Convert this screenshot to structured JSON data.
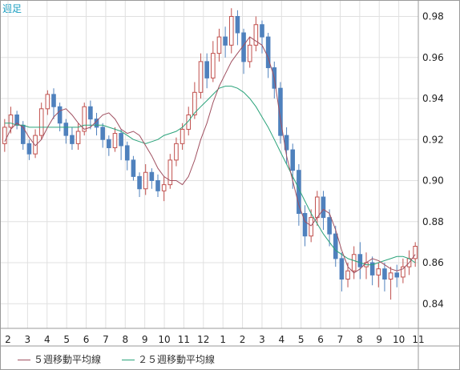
{
  "period_label": "週足",
  "colors": {
    "up": "#c0504d",
    "down": "#4f81bd",
    "ma5": "#a05060",
    "ma25": "#2aa37a",
    "grid": "#e0e0e0",
    "frame": "#9a9a9a"
  },
  "chart_data": {
    "type": "candlestick",
    "ylim": [
      0.828,
      0.988
    ],
    "y_ticks": [
      "0.98",
      "0.96",
      "0.94",
      "0.92",
      "0.90",
      "0.88",
      "0.86",
      "0.84"
    ],
    "x_tick_labels": [
      "2",
      "3",
      "4",
      "5",
      "6",
      "7",
      "8",
      "9",
      "10",
      "11",
      "12",
      "1",
      "2",
      "3",
      "4",
      "5",
      "6",
      "7",
      "8",
      "9",
      "10",
      "11"
    ],
    "series": [
      {
        "name": "５週移動平均線",
        "values": [
          0.919,
          0.925,
          0.928,
          0.926,
          0.921,
          0.917,
          0.92,
          0.926,
          0.931,
          0.934,
          0.935,
          0.932,
          0.928,
          0.925,
          0.926,
          0.929,
          0.932,
          0.933,
          0.93,
          0.925,
          0.923,
          0.924,
          0.922,
          0.917,
          0.912,
          0.906,
          0.902,
          0.9,
          0.9,
          0.898,
          0.902,
          0.91,
          0.92,
          0.928,
          0.938,
          0.946,
          0.952,
          0.958,
          0.962,
          0.966,
          0.97,
          0.968,
          0.966,
          0.96,
          0.95,
          0.93,
          0.912,
          0.9,
          0.888,
          0.88,
          0.878,
          0.882,
          0.886,
          0.884,
          0.876,
          0.866,
          0.858,
          0.855,
          0.857,
          0.86,
          0.862,
          0.861,
          0.859,
          0.857,
          0.856,
          0.857,
          0.86,
          0.864
        ]
      },
      {
        "name": "２５週移動平均線",
        "values": [
          0.928,
          0.928,
          0.927,
          0.927,
          0.926,
          0.926,
          0.926,
          0.926,
          0.926,
          0.926,
          0.926,
          0.926,
          0.926,
          0.927,
          0.927,
          0.927,
          0.927,
          0.926,
          0.925,
          0.924,
          0.922,
          0.92,
          0.919,
          0.918,
          0.919,
          0.92,
          0.922,
          0.923,
          0.924,
          0.926,
          0.929,
          0.933,
          0.936,
          0.939,
          0.942,
          0.945,
          0.946,
          0.946,
          0.945,
          0.943,
          0.94,
          0.936,
          0.931,
          0.926,
          0.92,
          0.914,
          0.908,
          0.902,
          0.896,
          0.89,
          0.884,
          0.879,
          0.874,
          0.87,
          0.866,
          0.864,
          0.862,
          0.861,
          0.86,
          0.859,
          0.859,
          0.86,
          0.861,
          0.862,
          0.863,
          0.863,
          0.862,
          0.86
        ]
      }
    ],
    "candles": [
      [
        0.918,
        0.926,
        0.914,
        0.93
      ],
      [
        0.926,
        0.932,
        0.923,
        0.936
      ],
      [
        0.932,
        0.927,
        0.925,
        0.934
      ],
      [
        0.927,
        0.918,
        0.915,
        0.929
      ],
      [
        0.918,
        0.913,
        0.91,
        0.92
      ],
      [
        0.913,
        0.922,
        0.911,
        0.925
      ],
      [
        0.922,
        0.935,
        0.92,
        0.938
      ],
      [
        0.935,
        0.942,
        0.932,
        0.944
      ],
      [
        0.942,
        0.936,
        0.93,
        0.945
      ],
      [
        0.936,
        0.928,
        0.924,
        0.938
      ],
      [
        0.928,
        0.922,
        0.918,
        0.93
      ],
      [
        0.922,
        0.918,
        0.915,
        0.926
      ],
      [
        0.918,
        0.924,
        0.915,
        0.928
      ],
      [
        0.924,
        0.936,
        0.922,
        0.938
      ],
      [
        0.936,
        0.93,
        0.925,
        0.939
      ],
      [
        0.93,
        0.926,
        0.922,
        0.933
      ],
      [
        0.926,
        0.92,
        0.916,
        0.928
      ],
      [
        0.92,
        0.916,
        0.912,
        0.922
      ],
      [
        0.916,
        0.923,
        0.914,
        0.926
      ],
      [
        0.923,
        0.917,
        0.91,
        0.925
      ],
      [
        0.917,
        0.91,
        0.905,
        0.919
      ],
      [
        0.91,
        0.902,
        0.9,
        0.912
      ],
      [
        0.902,
        0.896,
        0.892,
        0.904
      ],
      [
        0.896,
        0.904,
        0.893,
        0.908
      ],
      [
        0.904,
        0.9,
        0.896,
        0.906
      ],
      [
        0.9,
        0.895,
        0.892,
        0.903
      ],
      [
        0.895,
        0.898,
        0.89,
        0.902
      ],
      [
        0.898,
        0.91,
        0.896,
        0.913
      ],
      [
        0.91,
        0.918,
        0.907,
        0.921
      ],
      [
        0.918,
        0.925,
        0.915,
        0.928
      ],
      [
        0.925,
        0.932,
        0.922,
        0.936
      ],
      [
        0.932,
        0.943,
        0.93,
        0.948
      ],
      [
        0.943,
        0.958,
        0.94,
        0.962
      ],
      [
        0.958,
        0.95,
        0.945,
        0.962
      ],
      [
        0.95,
        0.962,
        0.948,
        0.968
      ],
      [
        0.962,
        0.97,
        0.958,
        0.974
      ],
      [
        0.97,
        0.966,
        0.96,
        0.975
      ],
      [
        0.966,
        0.98,
        0.962,
        0.984
      ],
      [
        0.98,
        0.972,
        0.966,
        0.983
      ],
      [
        0.972,
        0.958,
        0.952,
        0.974
      ],
      [
        0.958,
        0.966,
        0.955,
        0.97
      ],
      [
        0.966,
        0.976,
        0.963,
        0.98
      ],
      [
        0.976,
        0.97,
        0.962,
        0.978
      ],
      [
        0.97,
        0.955,
        0.95,
        0.972
      ],
      [
        0.955,
        0.945,
        0.94,
        0.958
      ],
      [
        0.945,
        0.922,
        0.918,
        0.948
      ],
      [
        0.922,
        0.915,
        0.908,
        0.926
      ],
      [
        0.915,
        0.905,
        0.896,
        0.918
      ],
      [
        0.905,
        0.884,
        0.878,
        0.908
      ],
      [
        0.884,
        0.873,
        0.868,
        0.888
      ],
      [
        0.873,
        0.882,
        0.87,
        0.886
      ],
      [
        0.882,
        0.892,
        0.878,
        0.895
      ],
      [
        0.892,
        0.882,
        0.876,
        0.895
      ],
      [
        0.882,
        0.874,
        0.868,
        0.886
      ],
      [
        0.874,
        0.862,
        0.858,
        0.878
      ],
      [
        0.862,
        0.852,
        0.846,
        0.865
      ],
      [
        0.852,
        0.856,
        0.848,
        0.86
      ],
      [
        0.856,
        0.864,
        0.852,
        0.868
      ],
      [
        0.864,
        0.858,
        0.852,
        0.87
      ],
      [
        0.858,
        0.86,
        0.852,
        0.865
      ],
      [
        0.86,
        0.854,
        0.849,
        0.863
      ],
      [
        0.854,
        0.857,
        0.848,
        0.86
      ],
      [
        0.857,
        0.852,
        0.846,
        0.86
      ],
      [
        0.852,
        0.855,
        0.842,
        0.858
      ],
      [
        0.855,
        0.853,
        0.848,
        0.859
      ],
      [
        0.853,
        0.858,
        0.85,
        0.862
      ],
      [
        0.858,
        0.862,
        0.854,
        0.866
      ],
      [
        0.862,
        0.868,
        0.858,
        0.87
      ]
    ]
  }
}
